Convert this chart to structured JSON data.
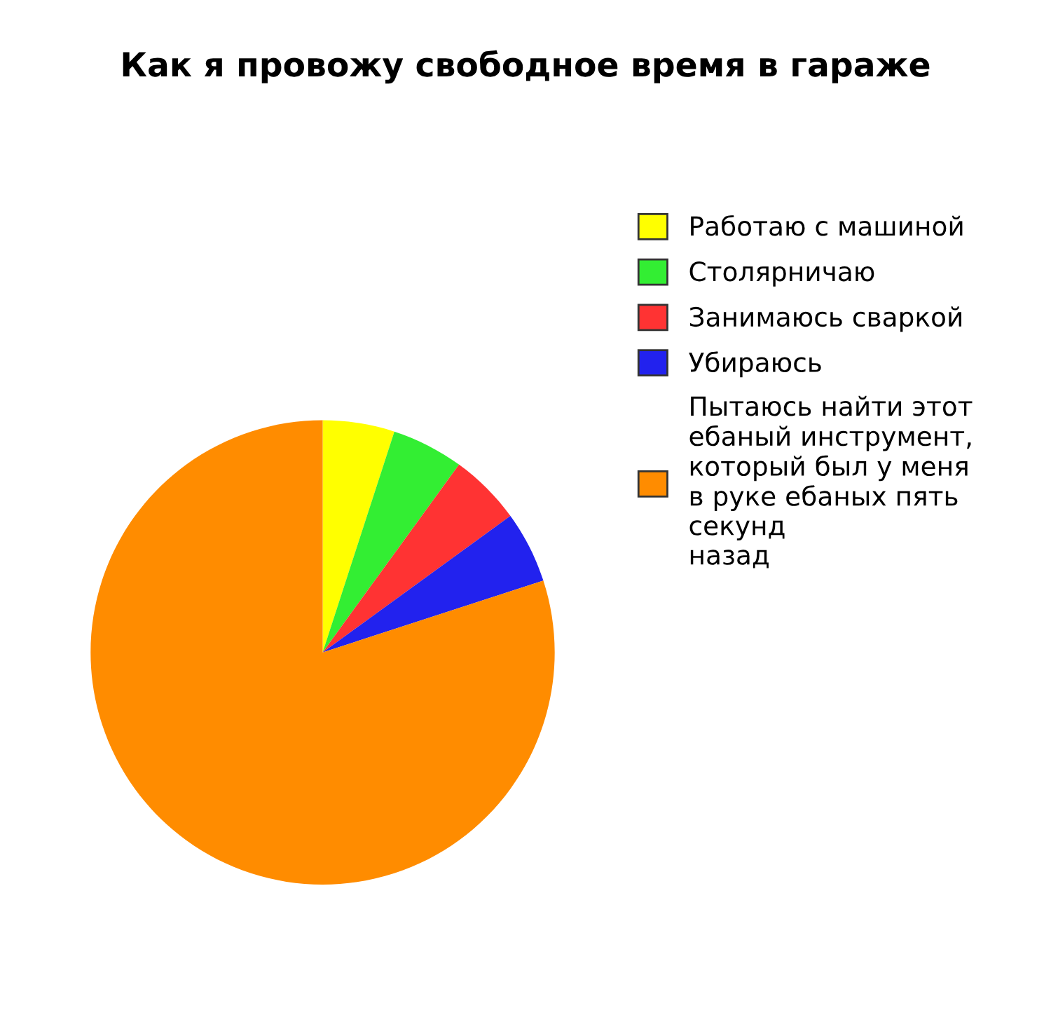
{
  "chart_data": {
    "type": "pie",
    "title": "Как я провожу свободное время в гараже",
    "categories": [
      "Работаю с машиной",
      "Столярничаю",
      "Занимаюсь сваркой",
      "Убираюсь",
      "Пытаюсь найти этот\nебаный инструмент,\nкоторый был у меня\nв руке ебаных пять\nсекунд\nназад"
    ],
    "values": [
      5,
      5,
      5,
      5,
      80
    ],
    "colors": [
      "#ffff00",
      "#33ee33",
      "#ff3333",
      "#2222ee",
      "#ff8c00"
    ],
    "legend": "right"
  }
}
